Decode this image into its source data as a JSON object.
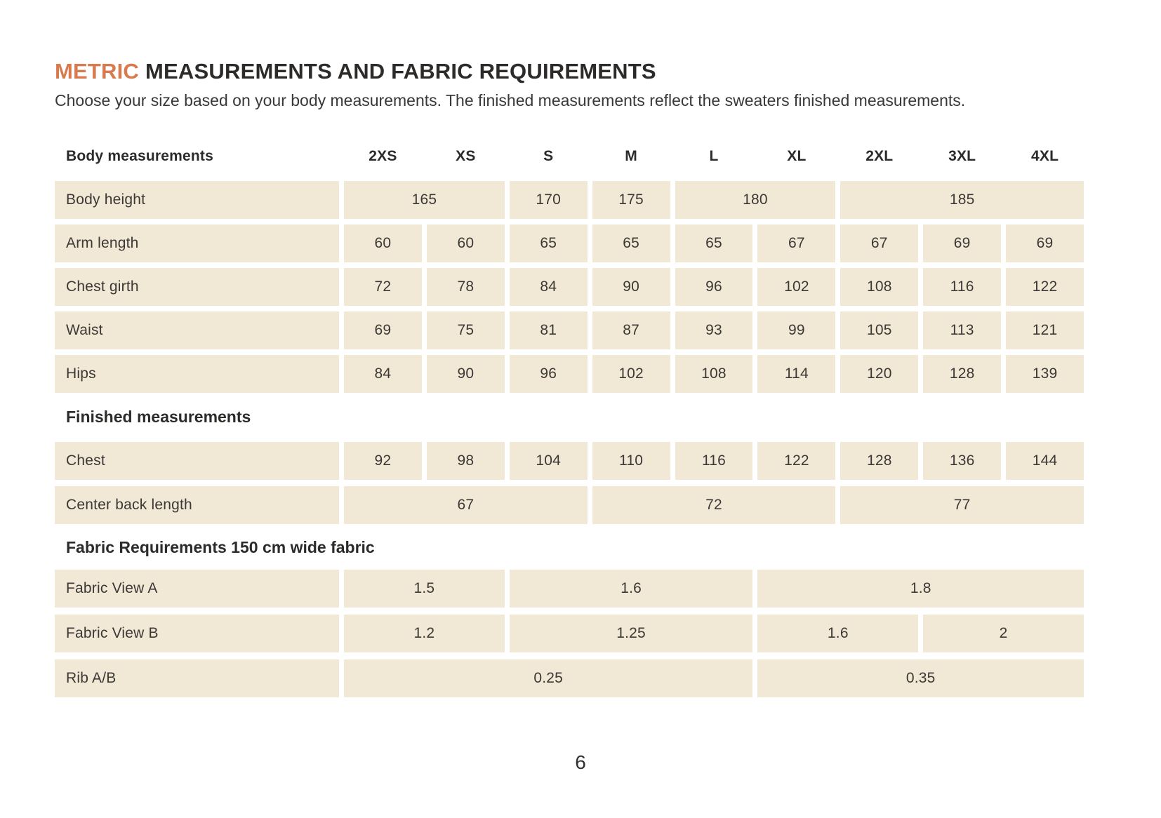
{
  "page": {
    "title": {
      "highlight": "METRIC",
      "rest": "MEASUREMENTS AND FABRIC REQUIREMENTS"
    },
    "subtitle": "Choose your size based on your body measurements. The finished measurements reflect the sweaters finished measurements.",
    "page_number": "6"
  },
  "colors": {
    "accent": "#d87a4e",
    "cell_background": "#f2e8d6",
    "heading_text": "#2c2b29",
    "body_text": "#3b3835"
  },
  "table": {
    "header": {
      "label": "Body measurements",
      "sizes": [
        "2XS",
        "XS",
        "S",
        "M",
        "L",
        "XL",
        "2XL",
        "3XL",
        "4XL"
      ]
    },
    "sections": [
      {
        "id": "body-measurements",
        "heading": "",
        "rows": [
          {
            "label": "Body height",
            "cells": [
              {
                "value": "165",
                "span": 2
              },
              {
                "value": "170",
                "span": 1
              },
              {
                "value": "175",
                "span": 1
              },
              {
                "value": "180",
                "span": 2
              },
              {
                "value": "185",
                "span": 3
              }
            ]
          },
          {
            "label": "Arm length",
            "cells": [
              {
                "value": "60",
                "span": 1
              },
              {
                "value": "60",
                "span": 1
              },
              {
                "value": "65",
                "span": 1
              },
              {
                "value": "65",
                "span": 1
              },
              {
                "value": "65",
                "span": 1
              },
              {
                "value": "67",
                "span": 1
              },
              {
                "value": "67",
                "span": 1
              },
              {
                "value": "69",
                "span": 1
              },
              {
                "value": "69",
                "span": 1
              }
            ]
          },
          {
            "label": "Chest girth",
            "cells": [
              {
                "value": "72",
                "span": 1
              },
              {
                "value": "78",
                "span": 1
              },
              {
                "value": "84",
                "span": 1
              },
              {
                "value": "90",
                "span": 1
              },
              {
                "value": "96",
                "span": 1
              },
              {
                "value": "102",
                "span": 1
              },
              {
                "value": "108",
                "span": 1
              },
              {
                "value": "116",
                "span": 1
              },
              {
                "value": "122",
                "span": 1
              }
            ]
          },
          {
            "label": "Waist",
            "cells": [
              {
                "value": "69",
                "span": 1
              },
              {
                "value": "75",
                "span": 1
              },
              {
                "value": "81",
                "span": 1
              },
              {
                "value": "87",
                "span": 1
              },
              {
                "value": "93",
                "span": 1
              },
              {
                "value": "99",
                "span": 1
              },
              {
                "value": "105",
                "span": 1
              },
              {
                "value": "113",
                "span": 1
              },
              {
                "value": "121",
                "span": 1
              }
            ]
          },
          {
            "label": "Hips",
            "cells": [
              {
                "value": "84",
                "span": 1
              },
              {
                "value": "90",
                "span": 1
              },
              {
                "value": "96",
                "span": 1
              },
              {
                "value": "102",
                "span": 1
              },
              {
                "value": "108",
                "span": 1
              },
              {
                "value": "114",
                "span": 1
              },
              {
                "value": "120",
                "span": 1
              },
              {
                "value": "128",
                "span": 1
              },
              {
                "value": "139",
                "span": 1
              }
            ]
          }
        ]
      },
      {
        "id": "finished-measurements",
        "heading": "Finished measurements",
        "rows": [
          {
            "label": "Chest",
            "cells": [
              {
                "value": "92",
                "span": 1
              },
              {
                "value": "98",
                "span": 1
              },
              {
                "value": "104",
                "span": 1
              },
              {
                "value": "110",
                "span": 1
              },
              {
                "value": "116",
                "span": 1
              },
              {
                "value": "122",
                "span": 1
              },
              {
                "value": "128",
                "span": 1
              },
              {
                "value": "136",
                "span": 1
              },
              {
                "value": "144",
                "span": 1
              }
            ]
          },
          {
            "label": "Center back length",
            "cells": [
              {
                "value": "67",
                "span": 3
              },
              {
                "value": "72",
                "span": 3
              },
              {
                "value": "77",
                "span": 3
              }
            ]
          }
        ]
      },
      {
        "id": "fabric-requirements",
        "heading": "Fabric Requirements 150 cm wide fabric",
        "rows": [
          {
            "label": "Fabric View A",
            "cells": [
              {
                "value": "1.5",
                "span": 2
              },
              {
                "value": "1.6",
                "span": 3
              },
              {
                "value": "1.8",
                "span": 4
              }
            ]
          },
          {
            "label": "Fabric View B",
            "cells": [
              {
                "value": "1.2",
                "span": 2
              },
              {
                "value": "1.25",
                "span": 3
              },
              {
                "value": "1.6",
                "span": 2
              },
              {
                "value": "2",
                "span": 2
              }
            ]
          },
          {
            "label": "Rib A/B",
            "cells": [
              {
                "value": "0.25",
                "span": 5
              },
              {
                "value": "0.35",
                "span": 4
              }
            ]
          }
        ]
      }
    ]
  }
}
